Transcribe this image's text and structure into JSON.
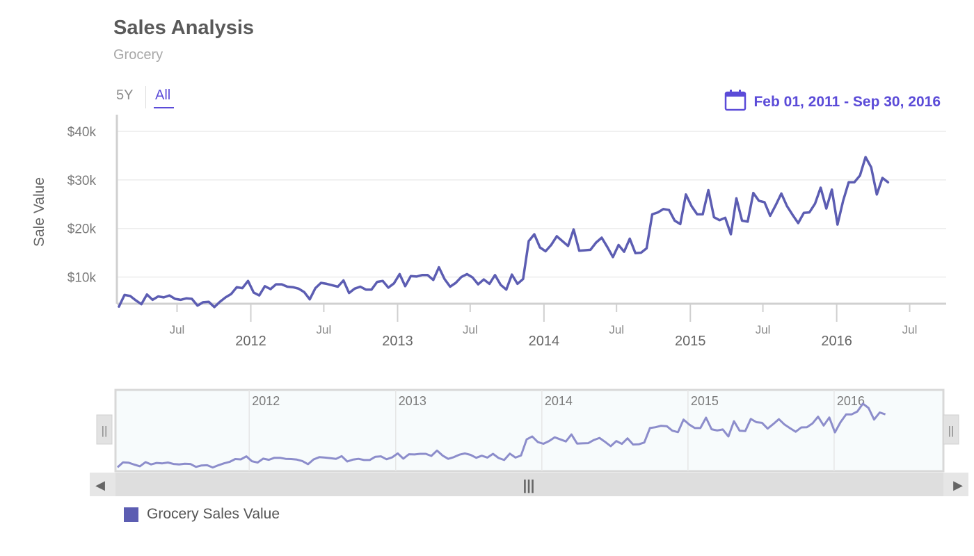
{
  "header": {
    "title": "Sales Analysis",
    "subtitle": "Grocery"
  },
  "range_selector": {
    "buttons": [
      "5Y",
      "All"
    ],
    "active": "All",
    "date_range": "Feb 01, 2011 - Sep 30, 2016",
    "icon": "calendar-icon"
  },
  "colors": {
    "series": "#5c5db2",
    "accent": "#5b4bd8",
    "navigator_series": "#8c8dcb",
    "axis": "#d0d0d0",
    "grid": "#ececec"
  },
  "chart_data": {
    "type": "line",
    "title": "Sales Analysis",
    "subtitle": "Grocery",
    "ylabel": "Sale Value",
    "xlabel": "",
    "y_tick_labels": [
      "$10k",
      "$20k",
      "$30k",
      "$40k"
    ],
    "y_ticks": [
      10000,
      20000,
      30000,
      40000
    ],
    "x_minor_labels": [
      "Jul",
      "Jul",
      "Jul",
      "Jul",
      "Jul"
    ],
    "x_major_labels": [
      "2012",
      "2013",
      "2014",
      "2015",
      "2016"
    ],
    "navigator_labels": [
      "2012",
      "2013",
      "2014",
      "2015",
      "2016"
    ],
    "x_range": [
      "2011-02-01",
      "2016-09-30"
    ],
    "grid": true,
    "legend": "bottom-left",
    "series": [
      {
        "name": "Grocery Sales Value",
        "points": [
          [
            "2011-02-06",
            3900
          ],
          [
            "2011-02-20",
            6300
          ],
          [
            "2011-03-06",
            6100
          ],
          [
            "2011-03-20",
            5200
          ],
          [
            "2011-04-03",
            4400
          ],
          [
            "2011-04-17",
            6400
          ],
          [
            "2011-05-01",
            5300
          ],
          [
            "2011-05-15",
            6000
          ],
          [
            "2011-05-29",
            5800
          ],
          [
            "2011-06-12",
            6200
          ],
          [
            "2011-06-26",
            5500
          ],
          [
            "2011-07-10",
            5300
          ],
          [
            "2011-07-24",
            5600
          ],
          [
            "2011-08-07",
            5500
          ],
          [
            "2011-08-21",
            4100
          ],
          [
            "2011-09-04",
            4800
          ],
          [
            "2011-09-18",
            4900
          ],
          [
            "2011-10-02",
            3800
          ],
          [
            "2011-10-16",
            4900
          ],
          [
            "2011-10-30",
            5800
          ],
          [
            "2011-11-13",
            6500
          ],
          [
            "2011-11-27",
            7900
          ],
          [
            "2011-12-11",
            7700
          ],
          [
            "2011-12-25",
            9200
          ],
          [
            "2012-01-08",
            6800
          ],
          [
            "2012-01-22",
            6200
          ],
          [
            "2012-02-05",
            8100
          ],
          [
            "2012-02-19",
            7500
          ],
          [
            "2012-03-04",
            8500
          ],
          [
            "2012-03-18",
            8500
          ],
          [
            "2012-04-01",
            8000
          ],
          [
            "2012-04-15",
            7900
          ],
          [
            "2012-04-29",
            7600
          ],
          [
            "2012-05-13",
            6900
          ],
          [
            "2012-05-27",
            5400
          ],
          [
            "2012-06-10",
            7700
          ],
          [
            "2012-06-24",
            8800
          ],
          [
            "2012-07-08",
            8600
          ],
          [
            "2012-07-22",
            8300
          ],
          [
            "2012-08-05",
            8000
          ],
          [
            "2012-08-19",
            9300
          ],
          [
            "2012-09-02",
            6700
          ],
          [
            "2012-09-16",
            7600
          ],
          [
            "2012-09-30",
            8000
          ],
          [
            "2012-10-14",
            7400
          ],
          [
            "2012-10-28",
            7400
          ],
          [
            "2012-11-11",
            9000
          ],
          [
            "2012-11-25",
            9200
          ],
          [
            "2012-12-09",
            7800
          ],
          [
            "2012-12-23",
            8700
          ],
          [
            "2013-01-06",
            10600
          ],
          [
            "2013-01-20",
            8100
          ],
          [
            "2013-02-03",
            10200
          ],
          [
            "2013-02-17",
            10100
          ],
          [
            "2013-03-03",
            10400
          ],
          [
            "2013-03-17",
            10400
          ],
          [
            "2013-03-31",
            9400
          ],
          [
            "2013-04-14",
            12000
          ],
          [
            "2013-04-28",
            9600
          ],
          [
            "2013-05-12",
            8000
          ],
          [
            "2013-05-26",
            8800
          ],
          [
            "2013-06-09",
            10000
          ],
          [
            "2013-06-23",
            10600
          ],
          [
            "2013-07-07",
            9900
          ],
          [
            "2013-07-21",
            8500
          ],
          [
            "2013-08-04",
            9500
          ],
          [
            "2013-08-18",
            8600
          ],
          [
            "2013-09-01",
            10400
          ],
          [
            "2013-09-15",
            8400
          ],
          [
            "2013-09-29",
            7400
          ],
          [
            "2013-10-13",
            10500
          ],
          [
            "2013-10-27",
            8600
          ],
          [
            "2013-11-10",
            9600
          ],
          [
            "2013-11-24",
            17400
          ],
          [
            "2013-12-08",
            18800
          ],
          [
            "2013-12-22",
            16100
          ],
          [
            "2014-01-05",
            15300
          ],
          [
            "2014-01-19",
            16600
          ],
          [
            "2014-02-02",
            18400
          ],
          [
            "2014-02-16",
            17400
          ],
          [
            "2014-03-02",
            16400
          ],
          [
            "2014-03-16",
            19800
          ],
          [
            "2014-03-30",
            15400
          ],
          [
            "2014-04-13",
            15500
          ],
          [
            "2014-04-27",
            15600
          ],
          [
            "2014-05-11",
            17100
          ],
          [
            "2014-05-25",
            18100
          ],
          [
            "2014-06-08",
            16200
          ],
          [
            "2014-06-22",
            14100
          ],
          [
            "2014-07-06",
            16600
          ],
          [
            "2014-07-20",
            15200
          ],
          [
            "2014-08-03",
            17900
          ],
          [
            "2014-08-17",
            14900
          ],
          [
            "2014-08-31",
            15000
          ],
          [
            "2014-09-14",
            15900
          ],
          [
            "2014-09-28",
            22900
          ],
          [
            "2014-10-12",
            23300
          ],
          [
            "2014-10-26",
            24000
          ],
          [
            "2014-11-09",
            23800
          ],
          [
            "2014-11-23",
            21600
          ],
          [
            "2014-12-07",
            20900
          ],
          [
            "2014-12-21",
            27000
          ],
          [
            "2015-01-04",
            24600
          ],
          [
            "2015-01-18",
            22900
          ],
          [
            "2015-02-01",
            22900
          ],
          [
            "2015-02-15",
            27900
          ],
          [
            "2015-03-01",
            22300
          ],
          [
            "2015-03-15",
            21700
          ],
          [
            "2015-03-29",
            22200
          ],
          [
            "2015-04-12",
            18800
          ],
          [
            "2015-04-26",
            26200
          ],
          [
            "2015-05-10",
            21600
          ],
          [
            "2015-05-24",
            21400
          ],
          [
            "2015-06-07",
            27300
          ],
          [
            "2015-06-21",
            25700
          ],
          [
            "2015-07-05",
            25400
          ],
          [
            "2015-07-19",
            22600
          ],
          [
            "2015-08-02",
            24800
          ],
          [
            "2015-08-16",
            27200
          ],
          [
            "2015-08-30",
            24600
          ],
          [
            "2015-09-13",
            22800
          ],
          [
            "2015-09-27",
            21100
          ],
          [
            "2015-10-11",
            23200
          ],
          [
            "2015-10-25",
            23300
          ],
          [
            "2015-11-08",
            25100
          ],
          [
            "2015-11-22",
            28400
          ],
          [
            "2015-12-06",
            24100
          ],
          [
            "2015-12-20",
            28000
          ],
          [
            "2016-01-03",
            20800
          ],
          [
            "2016-01-17",
            25700
          ],
          [
            "2016-01-31",
            29500
          ],
          [
            "2016-02-14",
            29500
          ],
          [
            "2016-02-28",
            30900
          ],
          [
            "2016-03-13",
            34700
          ],
          [
            "2016-03-27",
            32600
          ],
          [
            "2016-04-10",
            27000
          ],
          [
            "2016-04-24",
            30400
          ],
          [
            "2016-05-08",
            29500
          ]
        ]
      }
    ]
  },
  "navigator": {
    "left_handle_glyph": "||",
    "right_handle_glyph": "||",
    "scroll_left_glyph": "◀",
    "scroll_right_glyph": "▶",
    "thumb_glyph": "|||"
  },
  "legend": {
    "label": "Grocery Sales Value"
  }
}
